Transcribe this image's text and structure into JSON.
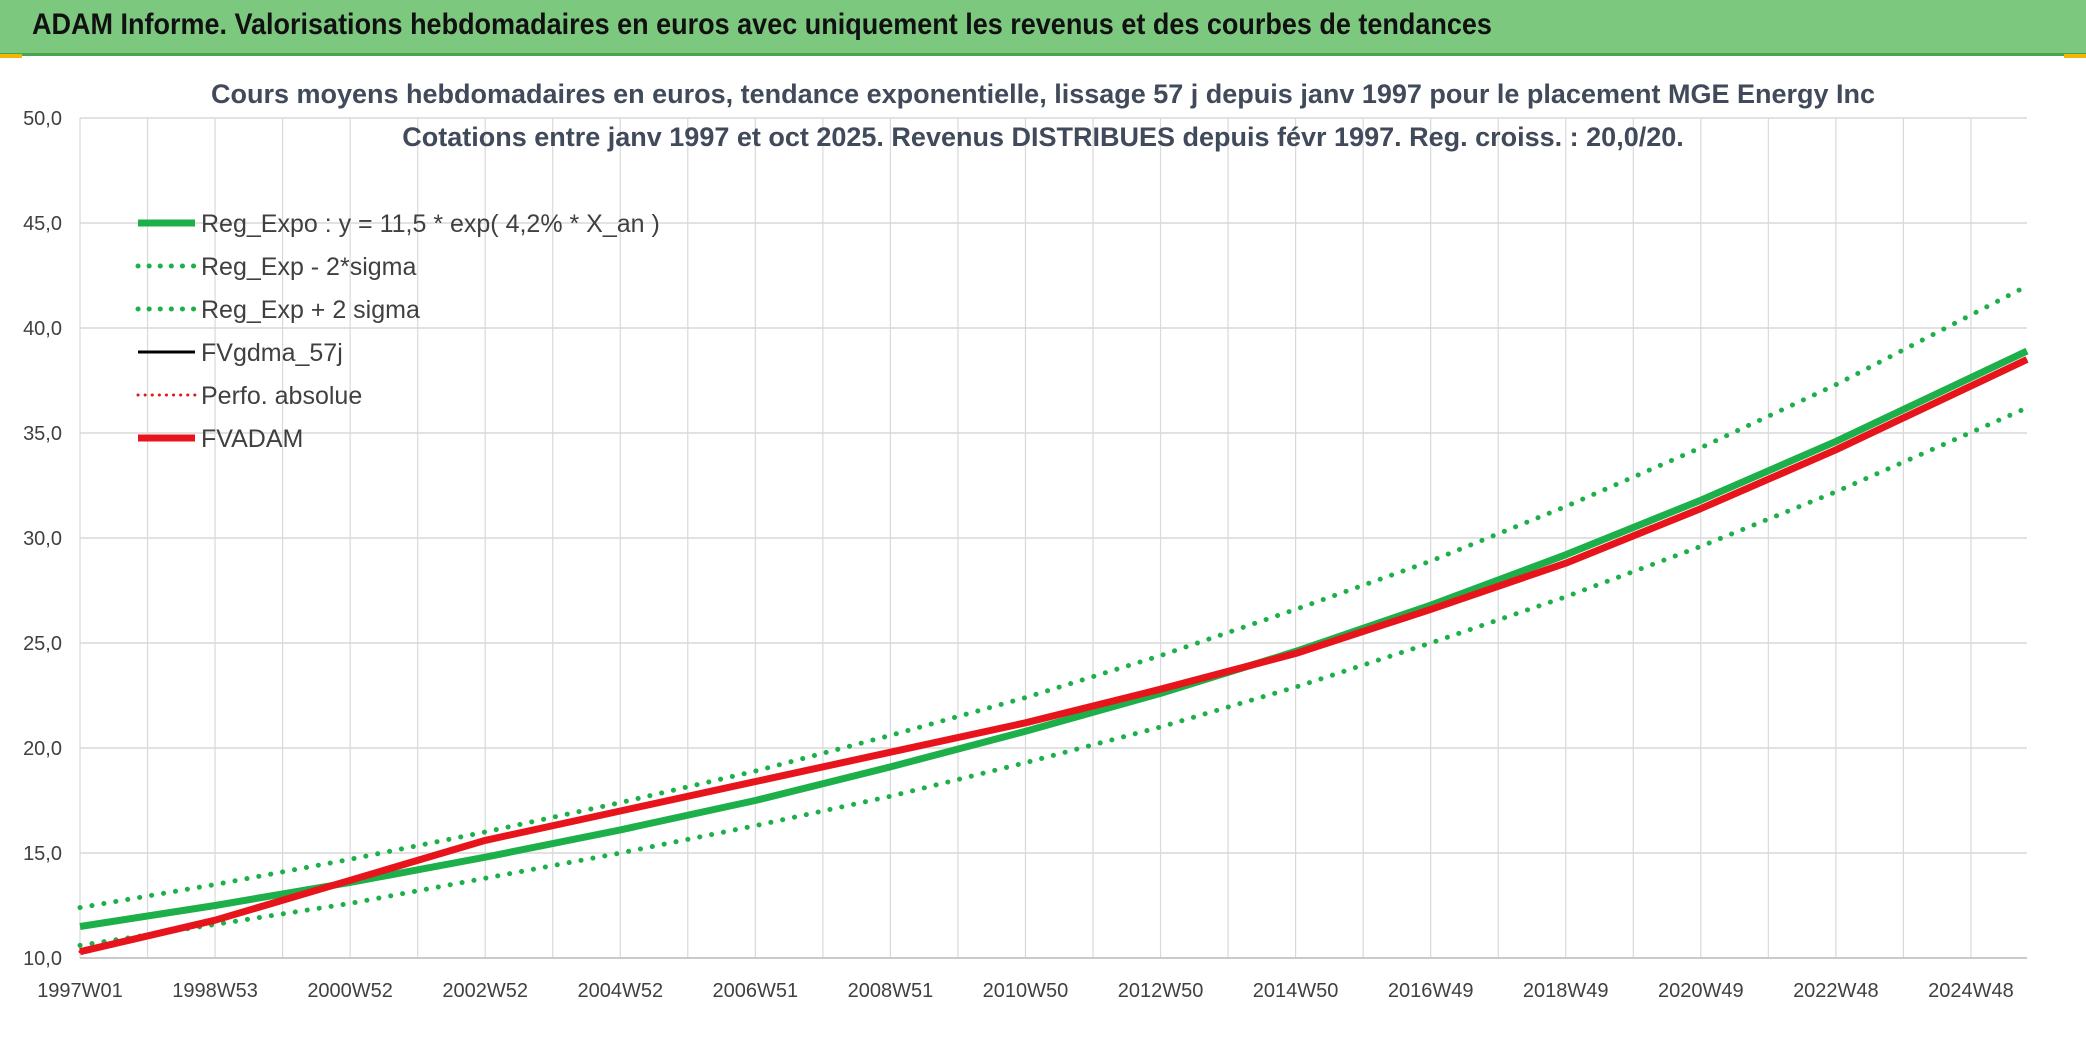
{
  "header": {
    "title": "ADAM Informe. Valorisations hebdomadaires en euros avec uniquement les revenus et des courbes de tendances"
  },
  "colors": {
    "header_bg": "#7dc87f",
    "green": "#1db04a",
    "red": "#e8141c",
    "black": "#000000",
    "grid": "#d9d9d9",
    "corner": "#f2b705"
  },
  "chart_data": {
    "type": "line",
    "title": "Cours moyens hebdomadaires en euros, tendance exponentielle, lissage 57 j depuis janv 1997 pour le placement MGE Energy Inc",
    "subtitle": "Cotations entre janv 1997 et oct 2025. Revenus DISTRIBUES depuis févr 1997. Reg. croiss. : 20,0/20.",
    "xlabel": "",
    "ylabel": "",
    "ylim": [
      10,
      50
    ],
    "yticks": [
      "10,0",
      "15,0",
      "20,0",
      "25,0",
      "30,0",
      "35,0",
      "40,0",
      "45,0",
      "50,0"
    ],
    "xlim": [
      1997.0,
      2025.83
    ],
    "xticks": [
      {
        "label": "1997W01",
        "year": 1997.0
      },
      {
        "label": "1998W53",
        "year": 1999.0
      },
      {
        "label": "2000W52",
        "year": 2001.0
      },
      {
        "label": "2002W52",
        "year": 2003.0
      },
      {
        "label": "2004W52",
        "year": 2005.0
      },
      {
        "label": "2006W51",
        "year": 2007.0
      },
      {
        "label": "2008W51",
        "year": 2009.0
      },
      {
        "label": "2010W50",
        "year": 2011.0
      },
      {
        "label": "2012W50",
        "year": 2013.0
      },
      {
        "label": "2014W50",
        "year": 2015.0
      },
      {
        "label": "2016W49",
        "year": 2017.0
      },
      {
        "label": "2018W49",
        "year": 2019.0
      },
      {
        "label": "2020W49",
        "year": 2021.0
      },
      {
        "label": "2022W48",
        "year": 2023.0
      },
      {
        "label": "2024W48",
        "year": 2025.0
      }
    ],
    "grid": true,
    "legend_position": "top-left",
    "series": [
      {
        "name": "Reg_Expo : y = 11,5 * exp( 4,2% *  X_an )",
        "color": "#1db04a",
        "style": "solid",
        "width": 7,
        "x": [
          1997,
          1999,
          2001,
          2003,
          2005,
          2007,
          2009,
          2011,
          2013,
          2015,
          2017,
          2019,
          2021,
          2023,
          2025.83
        ],
        "y": [
          11.5,
          12.5,
          13.6,
          14.8,
          16.1,
          17.5,
          19.1,
          20.8,
          22.6,
          24.6,
          26.8,
          29.2,
          31.8,
          34.6,
          38.9
        ]
      },
      {
        "name": "Reg_Exp - 2*sigma",
        "color": "#1db04a",
        "style": "dotted",
        "width": 5,
        "x": [
          1997,
          1999,
          2001,
          2003,
          2005,
          2007,
          2009,
          2011,
          2013,
          2015,
          2017,
          2019,
          2021,
          2023,
          2025.83
        ],
        "y": [
          10.6,
          11.6,
          12.6,
          13.8,
          15.0,
          16.3,
          17.7,
          19.3,
          21.0,
          22.9,
          25.0,
          27.2,
          29.6,
          32.2,
          36.2
        ]
      },
      {
        "name": "Reg_Exp + 2 sigma",
        "color": "#1db04a",
        "style": "dotted",
        "width": 5,
        "x": [
          1997,
          1999,
          2001,
          2003,
          2005,
          2007,
          2009,
          2011,
          2013,
          2015,
          2017,
          2019,
          2021,
          2023,
          2025.83
        ],
        "y": [
          12.4,
          13.5,
          14.7,
          16.0,
          17.4,
          18.9,
          20.6,
          22.4,
          24.4,
          26.6,
          28.9,
          31.5,
          34.3,
          37.3,
          42.0
        ]
      },
      {
        "name": "FVgdma_57j",
        "color": "#000000",
        "style": "solid",
        "width": 3,
        "x": [
          1997,
          1999,
          2001,
          2003,
          2005,
          2007,
          2009,
          2011,
          2013,
          2015,
          2017,
          2019,
          2021,
          2023,
          2025.83
        ],
        "y": [
          10.3,
          11.8,
          13.7,
          15.6,
          17.0,
          18.4,
          19.8,
          21.2,
          22.8,
          24.5,
          26.6,
          28.8,
          31.4,
          34.2,
          38.5
        ]
      },
      {
        "name": "Perfo. absolue",
        "color": "#e8141c",
        "style": "dotted",
        "width": 3,
        "x": [
          1997,
          1999,
          2001,
          2003,
          2005,
          2007,
          2009,
          2011,
          2013,
          2015,
          2017,
          2019,
          2021,
          2023,
          2025.83
        ],
        "y": [
          10.3,
          11.8,
          13.7,
          15.6,
          17.0,
          18.4,
          19.8,
          21.2,
          22.8,
          24.5,
          26.6,
          28.8,
          31.4,
          34.2,
          38.5
        ]
      },
      {
        "name": "FVADAM",
        "color": "#e8141c",
        "style": "solid",
        "width": 7,
        "x": [
          1997,
          1999,
          2001,
          2003,
          2005,
          2007,
          2009,
          2011,
          2013,
          2015,
          2017,
          2019,
          2021,
          2023,
          2025.83
        ],
        "y": [
          10.3,
          11.8,
          13.7,
          15.6,
          17.0,
          18.4,
          19.8,
          21.2,
          22.8,
          24.5,
          26.6,
          28.8,
          31.4,
          34.2,
          38.5
        ]
      }
    ]
  }
}
